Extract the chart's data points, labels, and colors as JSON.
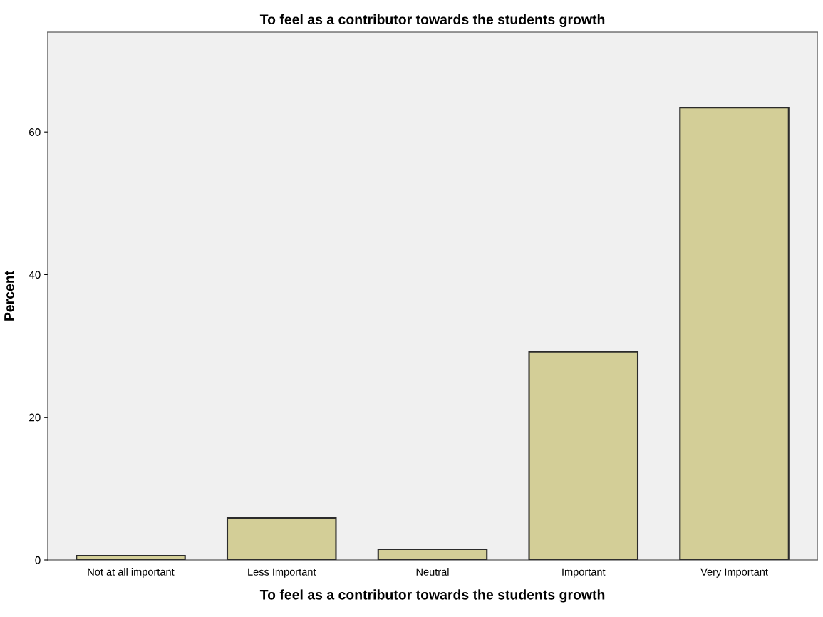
{
  "chart_data": {
    "type": "bar",
    "title": "To feel as a contributor towards the students growth",
    "xlabel": "To feel as a contributor towards the students growth",
    "ylabel": "Percent",
    "categories": [
      "Not at all important",
      "Less Important",
      "Neutral",
      "Important",
      "Very Important"
    ],
    "values": [
      0.6,
      5.9,
      1.5,
      29.2,
      63.4
    ],
    "color": "#d3ce97",
    "ylim": [
      0,
      74
    ],
    "yticks": [
      0,
      20,
      40,
      60
    ],
    "grid": false,
    "legend": false
  }
}
